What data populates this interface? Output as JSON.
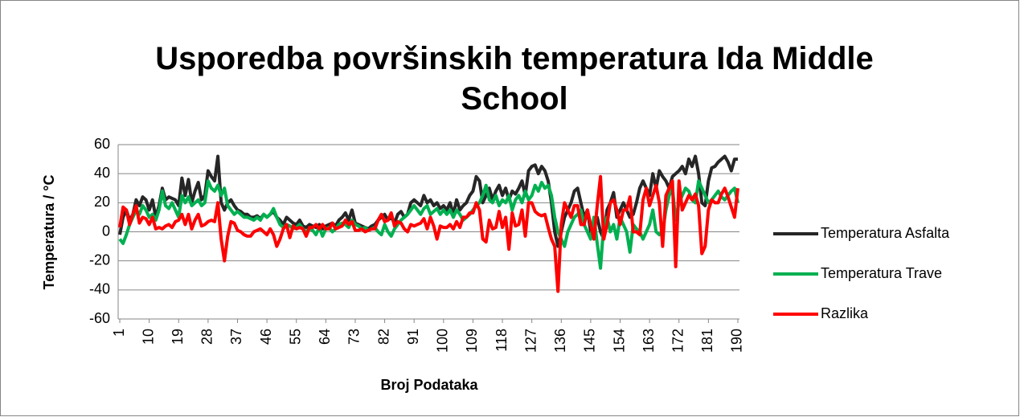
{
  "chart_data": {
    "type": "line",
    "title": "Usporedba površinskih temperatura Ida Middle School",
    "x_label": "Broj Podataka",
    "y_label": "Temperatura / °C",
    "x": [
      1,
      2,
      3,
      4,
      5,
      6,
      7,
      8,
      9,
      10,
      11,
      12,
      13,
      14,
      15,
      16,
      17,
      18,
      19,
      20,
      21,
      22,
      23,
      24,
      25,
      26,
      27,
      28,
      29,
      30,
      31,
      32,
      33,
      34,
      35,
      36,
      37,
      38,
      39,
      40,
      41,
      42,
      43,
      44,
      45,
      46,
      47,
      48,
      49,
      50,
      51,
      52,
      53,
      54,
      55,
      56,
      57,
      58,
      59,
      60,
      61,
      62,
      63,
      64,
      65,
      66,
      67,
      68,
      69,
      70,
      71,
      72,
      73,
      74,
      75,
      76,
      77,
      78,
      79,
      80,
      81,
      82,
      83,
      84,
      85,
      86,
      87,
      88,
      89,
      90,
      91,
      92,
      93,
      94,
      95,
      96,
      97,
      98,
      99,
      100,
      101,
      102,
      103,
      104,
      105,
      106,
      107,
      108,
      109,
      110,
      111,
      112,
      113,
      114,
      115,
      116,
      117,
      118,
      119,
      120,
      121,
      122,
      123,
      124,
      125,
      126,
      127,
      128,
      129,
      130,
      131,
      132,
      133,
      134,
      135,
      136,
      137,
      138,
      139,
      140,
      141,
      142,
      143,
      144,
      145,
      146,
      147,
      148,
      149,
      150,
      151,
      152,
      153,
      154,
      155,
      156,
      157,
      158,
      159,
      160,
      161,
      162,
      163,
      164,
      165,
      166,
      167,
      168,
      169,
      170,
      171,
      172,
      173,
      174,
      175,
      176,
      177,
      178,
      179,
      180,
      181,
      182,
      183,
      184,
      185,
      186,
      187,
      188,
      189,
      190
    ],
    "xlim": [
      0.5,
      190.5
    ],
    "xticks": [
      1,
      10,
      19,
      28,
      37,
      46,
      55,
      64,
      73,
      82,
      91,
      100,
      109,
      118,
      127,
      136,
      145,
      154,
      163,
      172,
      181,
      190
    ],
    "ylim": [
      -60,
      60
    ],
    "yticks": [
      -60,
      -40,
      -20,
      0,
      20,
      40,
      60
    ],
    "grid": true,
    "legend": "right",
    "series": [
      {
        "name": "Temperatura Asfalta",
        "color": "#262626",
        "values": [
          -2,
          10,
          15,
          8,
          12,
          22,
          18,
          24,
          22,
          15,
          22,
          10,
          18,
          30,
          22,
          24,
          23,
          22,
          18,
          37,
          25,
          36,
          20,
          28,
          34,
          22,
          25,
          42,
          38,
          35,
          52,
          20,
          15,
          20,
          22,
          18,
          15,
          14,
          12,
          12,
          10,
          10,
          11,
          9,
          12,
          10,
          12,
          14,
          10,
          8,
          5,
          10,
          8,
          6,
          5,
          8,
          4,
          3,
          5,
          4,
          3,
          5,
          2,
          4,
          5,
          6,
          4,
          8,
          10,
          13,
          8,
          15,
          6,
          5,
          4,
          3,
          2,
          4,
          5,
          8,
          10,
          12,
          8,
          10,
          6,
          12,
          14,
          10,
          12,
          20,
          22,
          20,
          18,
          25,
          20,
          22,
          18,
          20,
          16,
          18,
          15,
          20,
          12,
          22,
          15,
          18,
          20,
          25,
          28,
          38,
          35,
          20,
          25,
          30,
          22,
          28,
          32,
          25,
          30,
          22,
          28,
          26,
          30,
          35,
          25,
          42,
          45,
          46,
          40,
          45,
          42,
          35,
          20,
          0,
          -10,
          0,
          10,
          15,
          20,
          28,
          30,
          20,
          10,
          15,
          0,
          5,
          10,
          0,
          -5,
          15,
          20,
          27,
          10,
          15,
          20,
          15,
          10,
          12,
          20,
          30,
          35,
          30,
          25,
          40,
          30,
          42,
          38,
          35,
          30,
          38,
          40,
          42,
          45,
          40,
          50,
          45,
          52,
          40,
          20,
          18,
          35,
          44,
          45,
          48,
          50,
          52,
          48,
          42,
          50,
          50
        ]
      },
      {
        "name": "Temperatura Trave",
        "color": "#00b050",
        "values": [
          -5,
          -8,
          -2,
          5,
          10,
          15,
          12,
          18,
          15,
          10,
          12,
          8,
          15,
          28,
          18,
          16,
          20,
          15,
          10,
          25,
          20,
          24,
          18,
          20,
          22,
          18,
          20,
          35,
          30,
          28,
          32,
          25,
          30,
          18,
          15,
          12,
          14,
          12,
          10,
          10,
          9,
          8,
          10,
          8,
          12,
          10,
          12,
          16,
          10,
          5,
          3,
          5,
          4,
          2,
          3,
          5,
          2,
          0,
          2,
          1,
          -2,
          3,
          -3,
          2,
          3,
          0,
          2,
          5,
          6,
          5,
          3,
          8,
          5,
          4,
          2,
          3,
          1,
          2,
          3,
          0,
          -2,
          5,
          0,
          -3,
          2,
          5,
          8,
          10,
          12,
          15,
          18,
          15,
          12,
          16,
          18,
          12,
          14,
          16,
          12,
          15,
          12,
          15,
          10,
          15,
          12,
          8,
          10,
          12,
          15,
          18,
          20,
          25,
          32,
          22,
          20,
          25,
          18,
          22,
          20,
          25,
          15,
          22,
          25,
          20,
          28,
          22,
          25,
          32,
          28,
          34,
          30,
          32,
          25,
          10,
          0,
          -5,
          -10,
          0,
          5,
          10,
          12,
          15,
          5,
          0,
          -5,
          10,
          -8,
          -25,
          5,
          10,
          0,
          5,
          -5,
          10,
          5,
          0,
          -14,
          5,
          2,
          0,
          -5,
          0,
          5,
          15,
          0,
          -2,
          0,
          15,
          25,
          30,
          8,
          20,
          25,
          30,
          28,
          22,
          20,
          35,
          30,
          25,
          20,
          22,
          25,
          28,
          24,
          22,
          25,
          28,
          30,
          20
        ]
      },
      {
        "name": "Razlika",
        "color": "#ff0000",
        "values": [
          3,
          17,
          15,
          5,
          12,
          18,
          6,
          10,
          9,
          5,
          10,
          2,
          3,
          2,
          4,
          5,
          3,
          7,
          8,
          12,
          5,
          12,
          2,
          8,
          12,
          4,
          5,
          7,
          8,
          7,
          20,
          -5,
          -20,
          -3,
          7,
          6,
          1,
          0,
          -2,
          -3,
          -3,
          0,
          1,
          2,
          0,
          -2,
          2,
          -2,
          -10,
          -5,
          2,
          5,
          -4,
          4,
          2,
          3,
          2,
          -3,
          3,
          3,
          5,
          2,
          5,
          2,
          2,
          6,
          2,
          3,
          4,
          8,
          5,
          7,
          1,
          1,
          2,
          0,
          1,
          2,
          2,
          8,
          12,
          7,
          8,
          13,
          4,
          7,
          6,
          2,
          0,
          5,
          4,
          5,
          6,
          9,
          2,
          10,
          4,
          -5,
          4,
          3,
          3,
          5,
          2,
          7,
          3,
          10,
          10,
          13,
          13,
          20,
          15,
          -5,
          -7,
          8,
          2,
          3,
          14,
          3,
          10,
          -12,
          13,
          4,
          5,
          15,
          -3,
          20,
          20,
          14,
          12,
          11,
          12,
          3,
          -5,
          -10,
          -41,
          5,
          20,
          15,
          10,
          18,
          18,
          5,
          5,
          15,
          5,
          -5,
          18,
          38,
          -5,
          5,
          20,
          22,
          15,
          5,
          15,
          15,
          24,
          0,
          0,
          -2,
          22,
          30,
          18,
          25,
          32,
          20,
          -10,
          25,
          30,
          35,
          -24,
          35,
          15,
          20,
          25,
          22,
          26,
          18,
          -15,
          -10,
          15,
          22,
          20,
          20,
          26,
          30,
          24,
          17,
          10,
          30
        ]
      }
    ]
  }
}
